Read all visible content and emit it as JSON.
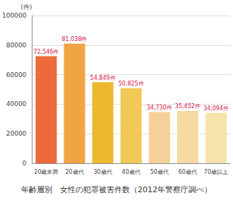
{
  "chart_data": {
    "type": "bar",
    "title": "年齢層別　女性の犯罪被害件数（2012年警察庁調べ）",
    "y_label": "(件)",
    "categories": [
      "20歳未満",
      "20歳代",
      "30歳代",
      "40歳代",
      "50歳代",
      "60歳代",
      "70歳以上"
    ],
    "values": [
      72546,
      81038,
      54849,
      50825,
      34730,
      35452,
      34094
    ],
    "value_labels": [
      "72,546件",
      "81,038件",
      "54,849件",
      "50,825件",
      "34,730件",
      "35,452件",
      "34,094件"
    ],
    "colors": [
      "#ec6a3c",
      "#f1a444",
      "#ecb92f",
      "#f2c957",
      "#f6d09a",
      "#f6d9a3",
      "#f6e3ab"
    ],
    "ylim": [
      0,
      100000
    ],
    "yticks": [
      0,
      20000,
      40000,
      60000,
      80000,
      100000
    ],
    "grid": true,
    "data_labels": true
  }
}
